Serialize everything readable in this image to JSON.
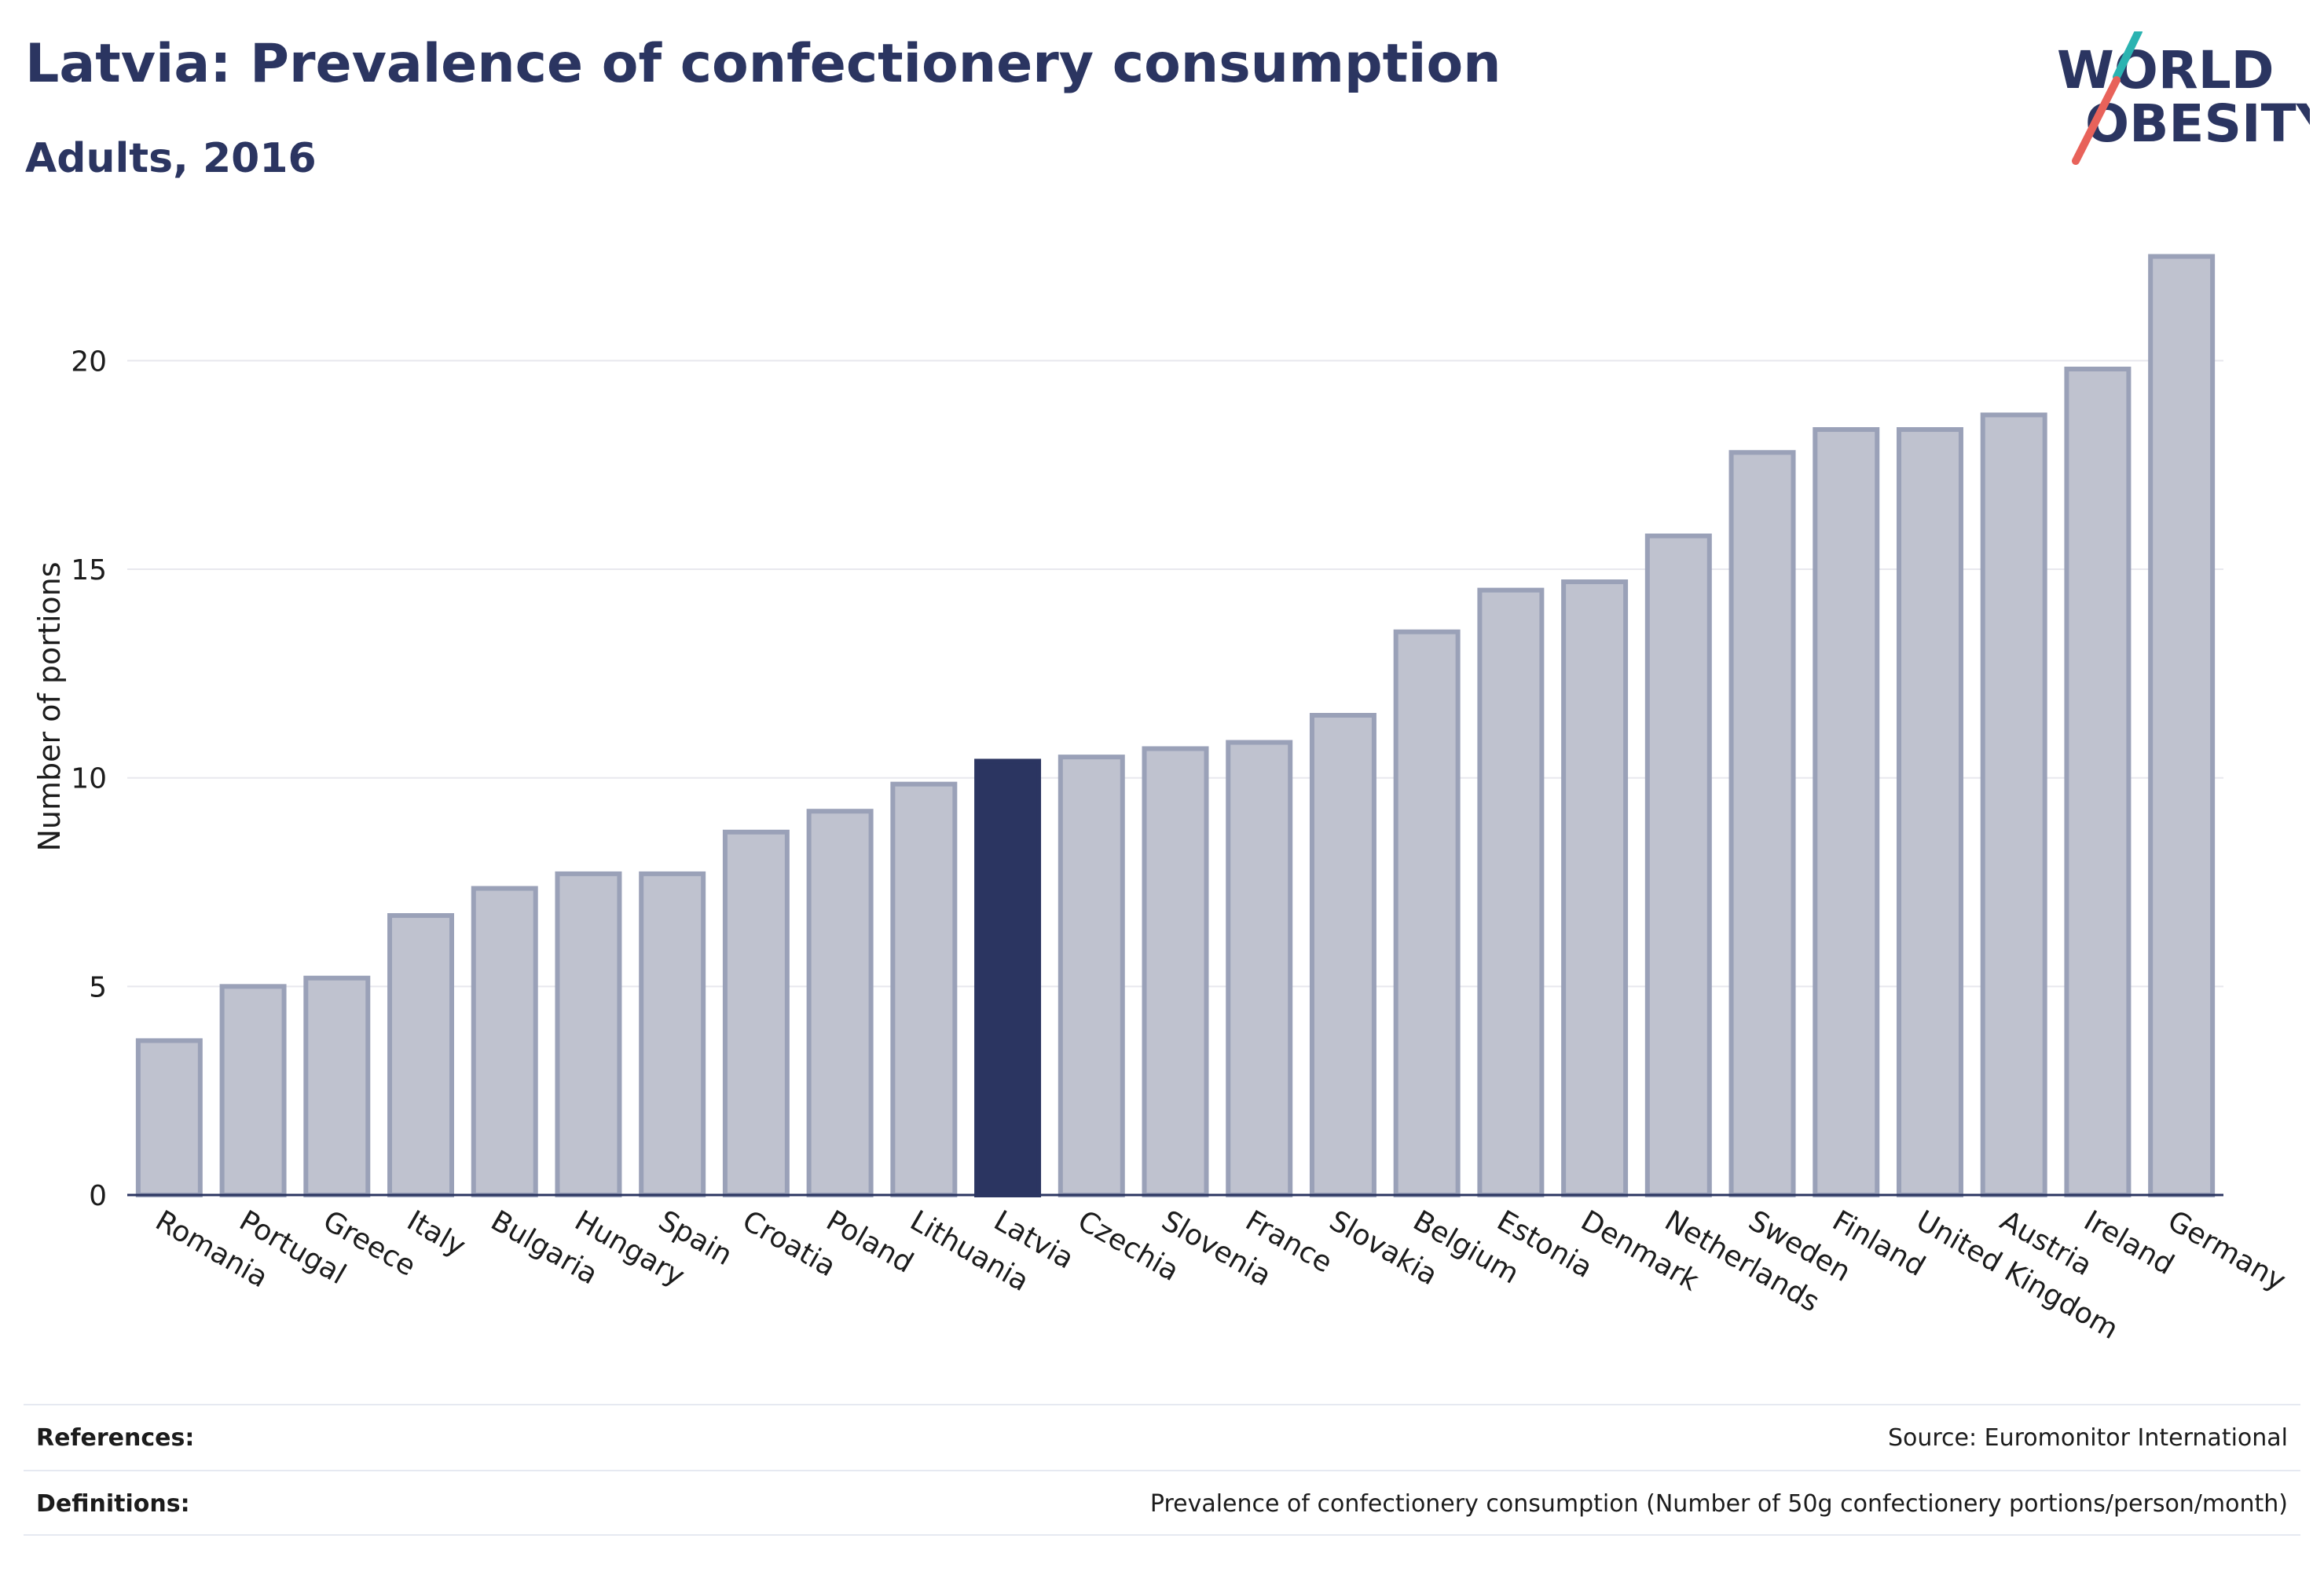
{
  "header": {
    "title": "Latvia: Prevalence of confectionery consumption",
    "subtitle": "Adults, 2016"
  },
  "logo": {
    "line1": "WORLD",
    "line2": "OBESITY",
    "colors": {
      "text": "#2b3561",
      "accent_teal": "#2bb3b1",
      "accent_red": "#e8625a"
    }
  },
  "chart_data": {
    "type": "bar",
    "ylabel": "Number of portions",
    "xlabel": "",
    "ylim": [
      0,
      23
    ],
    "yticks": [
      0,
      5,
      10,
      15,
      20
    ],
    "grid": true,
    "highlight": "Latvia",
    "colors": {
      "bar": "#bfc2cf",
      "bar_stroke": "#9aa1b8",
      "highlight": "#2b3561",
      "grid": "#e8e8ee",
      "axis": "#2b3561"
    },
    "categories": [
      "Romania",
      "Portugal",
      "Greece",
      "Italy",
      "Bulgaria",
      "Hungary",
      "Spain",
      "Croatia",
      "Poland",
      "Lithuania",
      "Latvia",
      "Czechia",
      "Slovenia",
      "France",
      "Slovakia",
      "Belgium",
      "Estonia",
      "Denmark",
      "Netherlands",
      "Sweden",
      "Finland",
      "United Kingdom",
      "Austria",
      "Ireland",
      "Germany"
    ],
    "values": [
      3.7,
      5.0,
      5.2,
      6.7,
      7.35,
      7.7,
      7.7,
      8.7,
      9.2,
      9.85,
      10.4,
      10.5,
      10.7,
      10.85,
      11.5,
      13.5,
      14.5,
      14.7,
      15.8,
      17.8,
      18.35,
      18.35,
      18.7,
      19.8,
      22.5
    ]
  },
  "footer": {
    "references_label": "References:",
    "references_value": "Source: Euromonitor International",
    "definitions_label": "Definitions:",
    "definitions_value": "Prevalence of confectionery consumption (Number of 50g confectionery portions/person/month)"
  }
}
